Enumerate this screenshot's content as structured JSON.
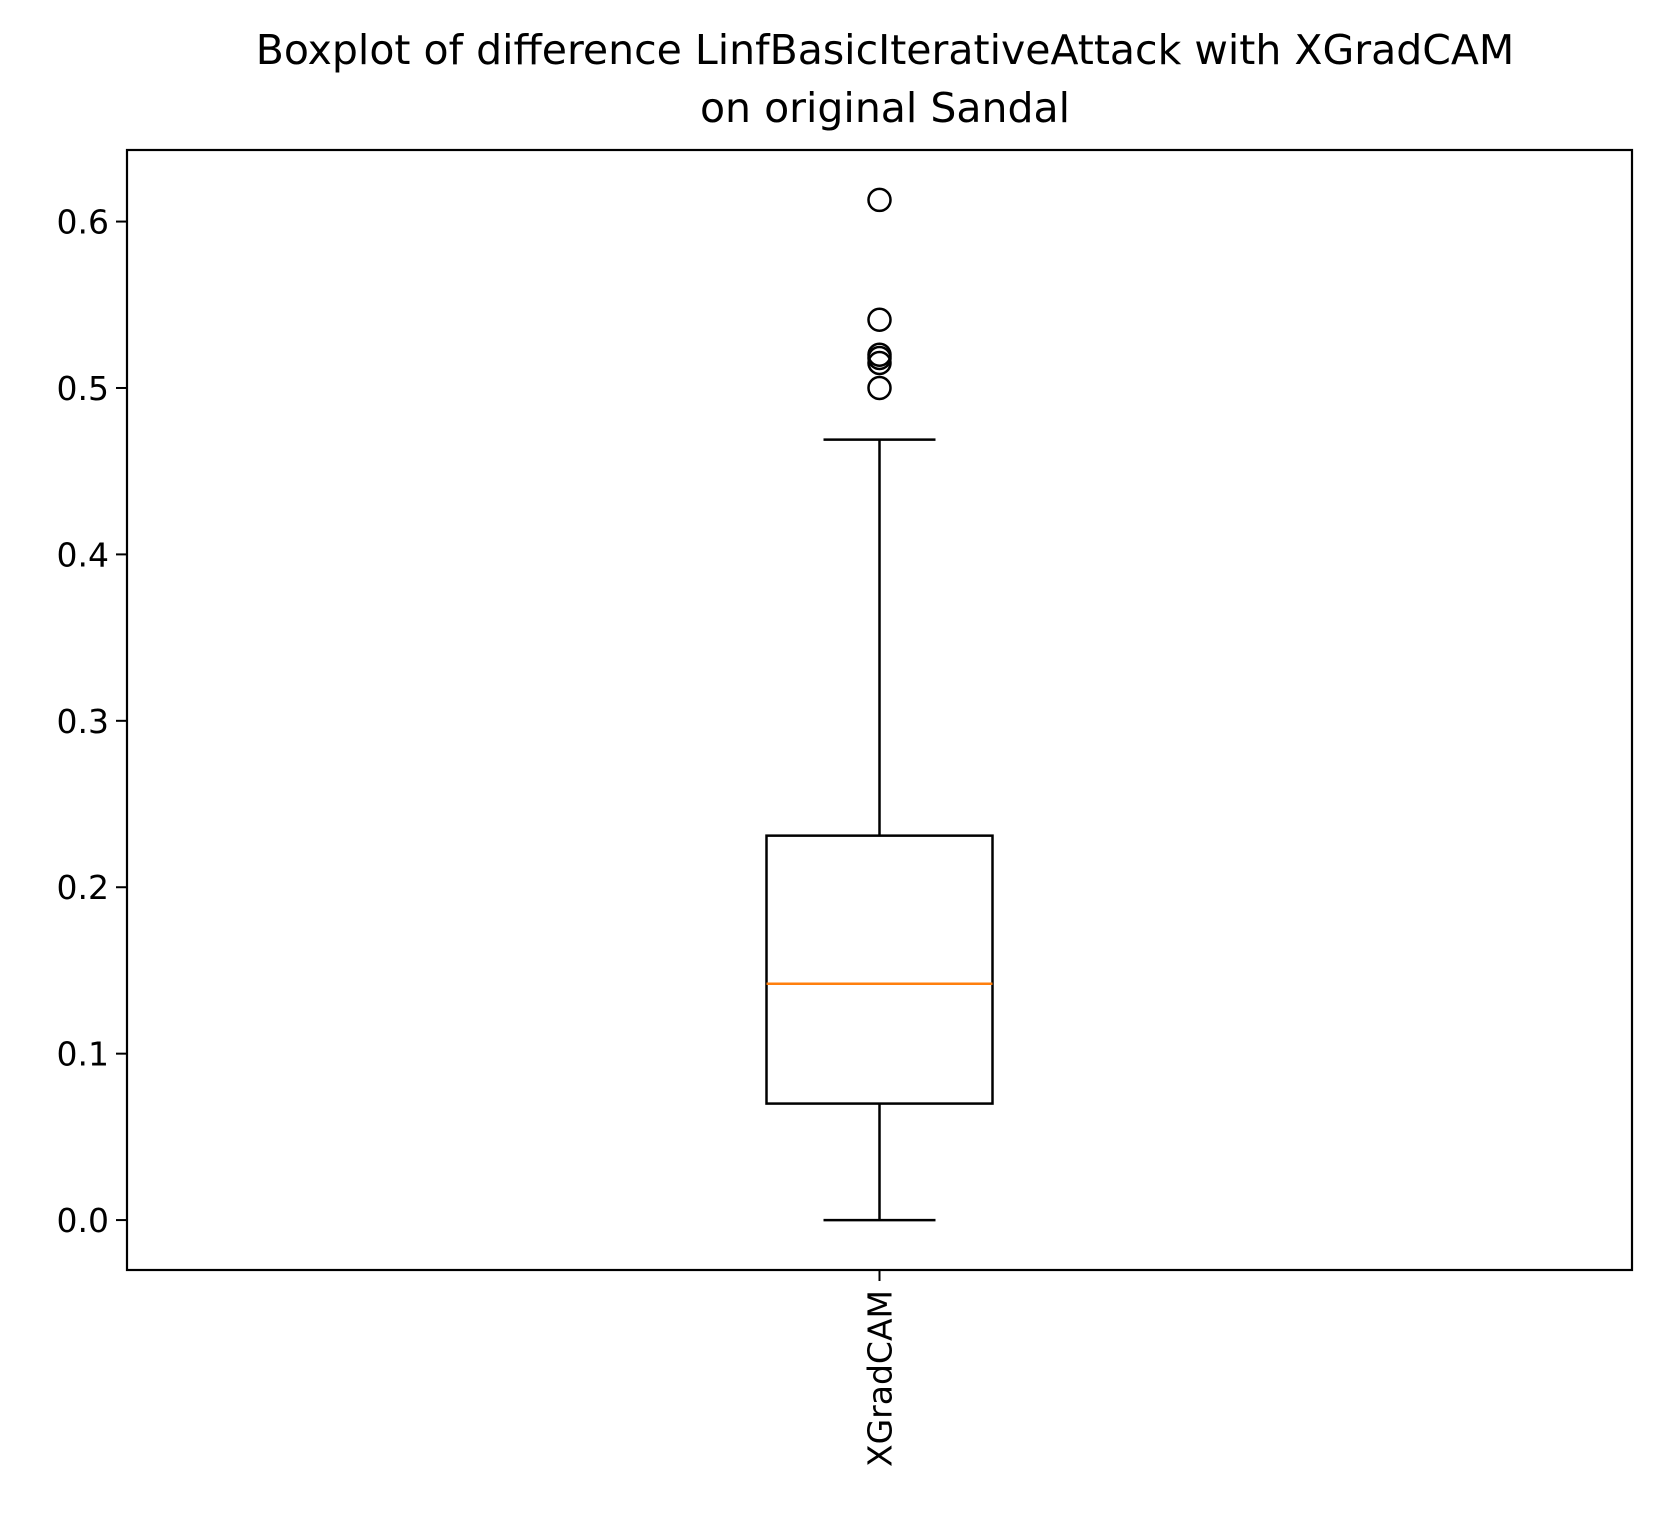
{
  "chart_data": {
    "type": "box",
    "title": "Boxplot of difference LinfBasicIterativeAttack with XGradCAM\non original Sandal",
    "title_lines": [
      "Boxplot of difference LinfBasicIterativeAttack with XGradCAM",
      "on original Sandal"
    ],
    "xlabel": "",
    "ylabel": "",
    "ylim": [
      -0.03,
      0.643
    ],
    "yticks": [
      0.0,
      0.1,
      0.2,
      0.3,
      0.4,
      0.5,
      0.6
    ],
    "ytick_labels": [
      "0.0",
      "0.1",
      "0.2",
      "0.3",
      "0.4",
      "0.5",
      "0.6"
    ],
    "categories": [
      "XGradCAM"
    ],
    "boxes": [
      {
        "label": "XGradCAM",
        "whisker_low": 0.0,
        "q1": 0.07,
        "median": 0.142,
        "q3": 0.231,
        "whisker_high": 0.469,
        "outliers": [
          0.5,
          0.515,
          0.518,
          0.52,
          0.541,
          0.613
        ]
      }
    ],
    "grid": false,
    "legend": "none",
    "colors": {
      "box": "#000000",
      "median": "#ff7f0e",
      "whisker": "#000000",
      "outlier": "#000000"
    }
  }
}
